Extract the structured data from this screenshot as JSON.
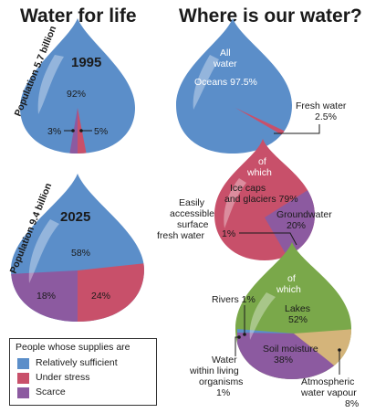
{
  "colors": {
    "sufficient": "#5b8ec9",
    "stress": "#c8506a",
    "scarce": "#8c5aa0",
    "fresh": "#c8506a",
    "ground": "#8c5aa0",
    "lakes": "#7aa84a",
    "soil": "#8c5aa0",
    "vapour": "#d4b47a",
    "ocean": "#5b8ec9"
  },
  "titles": {
    "left": "Water for life",
    "right": "Where is our water?"
  },
  "legend": {
    "title": "People whose supplies are",
    "items": [
      {
        "label": "Relatively sufficient",
        "color": "#5b8ec9"
      },
      {
        "label": "Under stress",
        "color": "#c8506a"
      },
      {
        "label": "Scarce",
        "color": "#8c5aa0"
      }
    ]
  },
  "chart_data": [
    {
      "type": "pie",
      "title": "1995",
      "subtitle": "Population 5.7 billion",
      "categories": [
        "Relatively sufficient",
        "Under stress",
        "Scarce"
      ],
      "values": [
        92,
        5,
        3
      ],
      "labels": [
        "92%",
        "5%",
        "3%"
      ]
    },
    {
      "type": "pie",
      "title": "2025",
      "subtitle": "Population 9.4 billion",
      "categories": [
        "Relatively sufficient",
        "Under stress",
        "Scarce"
      ],
      "values": [
        58,
        24,
        18
      ],
      "labels": [
        "58%",
        "24%",
        "18%"
      ]
    },
    {
      "type": "pie",
      "title": "All water",
      "categories": [
        "Oceans",
        "Fresh water"
      ],
      "values": [
        97.5,
        2.5
      ],
      "labels": [
        "Oceans 97.5%",
        "Fresh water 2.5%"
      ]
    },
    {
      "type": "pie",
      "title": "of which",
      "categories": [
        "Ice caps and glaciers",
        "Groundwater",
        "Easily accessible surface fresh water"
      ],
      "values": [
        79,
        20,
        1
      ],
      "labels": [
        "Ice caps and glaciers 79%",
        "Groundwater 20%",
        "1%"
      ],
      "annotation": "Easily accessible surface fresh water"
    },
    {
      "type": "pie",
      "title": "of which",
      "categories": [
        "Lakes",
        "Soil moisture",
        "Atmospheric water vapour",
        "Rivers",
        "Water within living organisms"
      ],
      "values": [
        52,
        38,
        8,
        1,
        1
      ],
      "labels": [
        "Lakes 52%",
        "Soil moisture 38%",
        "Atmospheric water vapour 8%",
        "Rivers 1%",
        "Water within living organisms 1%"
      ]
    }
  ],
  "text": {
    "pop1995": "Population 5.7 billion",
    "pop2025": "Population 9.4 billion",
    "yr1995": "1995",
    "yr2025": "2025",
    "v92": "92%",
    "v3": "3%",
    "v5": "5%",
    "v58": "58%",
    "v18": "18%",
    "v24": "24%",
    "allwater1": "All",
    "allwater2": "water",
    "oceans": "Oceans 97.5%",
    "fresh1": "Fresh water",
    "fresh2": "2.5%",
    "ofwhich1a": "of",
    "ofwhich1b": "which",
    "ice1": "Ice caps",
    "ice2": "and glaciers 79%",
    "ground1": "Groundwater",
    "ground2": "20%",
    "easily1": "Easily",
    "easily2": "accessible",
    "easily3": "surface",
    "easily4": "fresh water",
    "one": "1%",
    "ofwhich2a": "of",
    "ofwhich2b": "which",
    "rivers": "Rivers 1%",
    "lakes1": "Lakes",
    "lakes2": "52%",
    "soil1": "Soil moisture",
    "soil2": "38%",
    "living1": "Water",
    "living2": "within living",
    "living3": "organisms",
    "living4": "1%",
    "atm1": "Atmospheric",
    "atm2": "water vapour",
    "atm3": "8%"
  }
}
